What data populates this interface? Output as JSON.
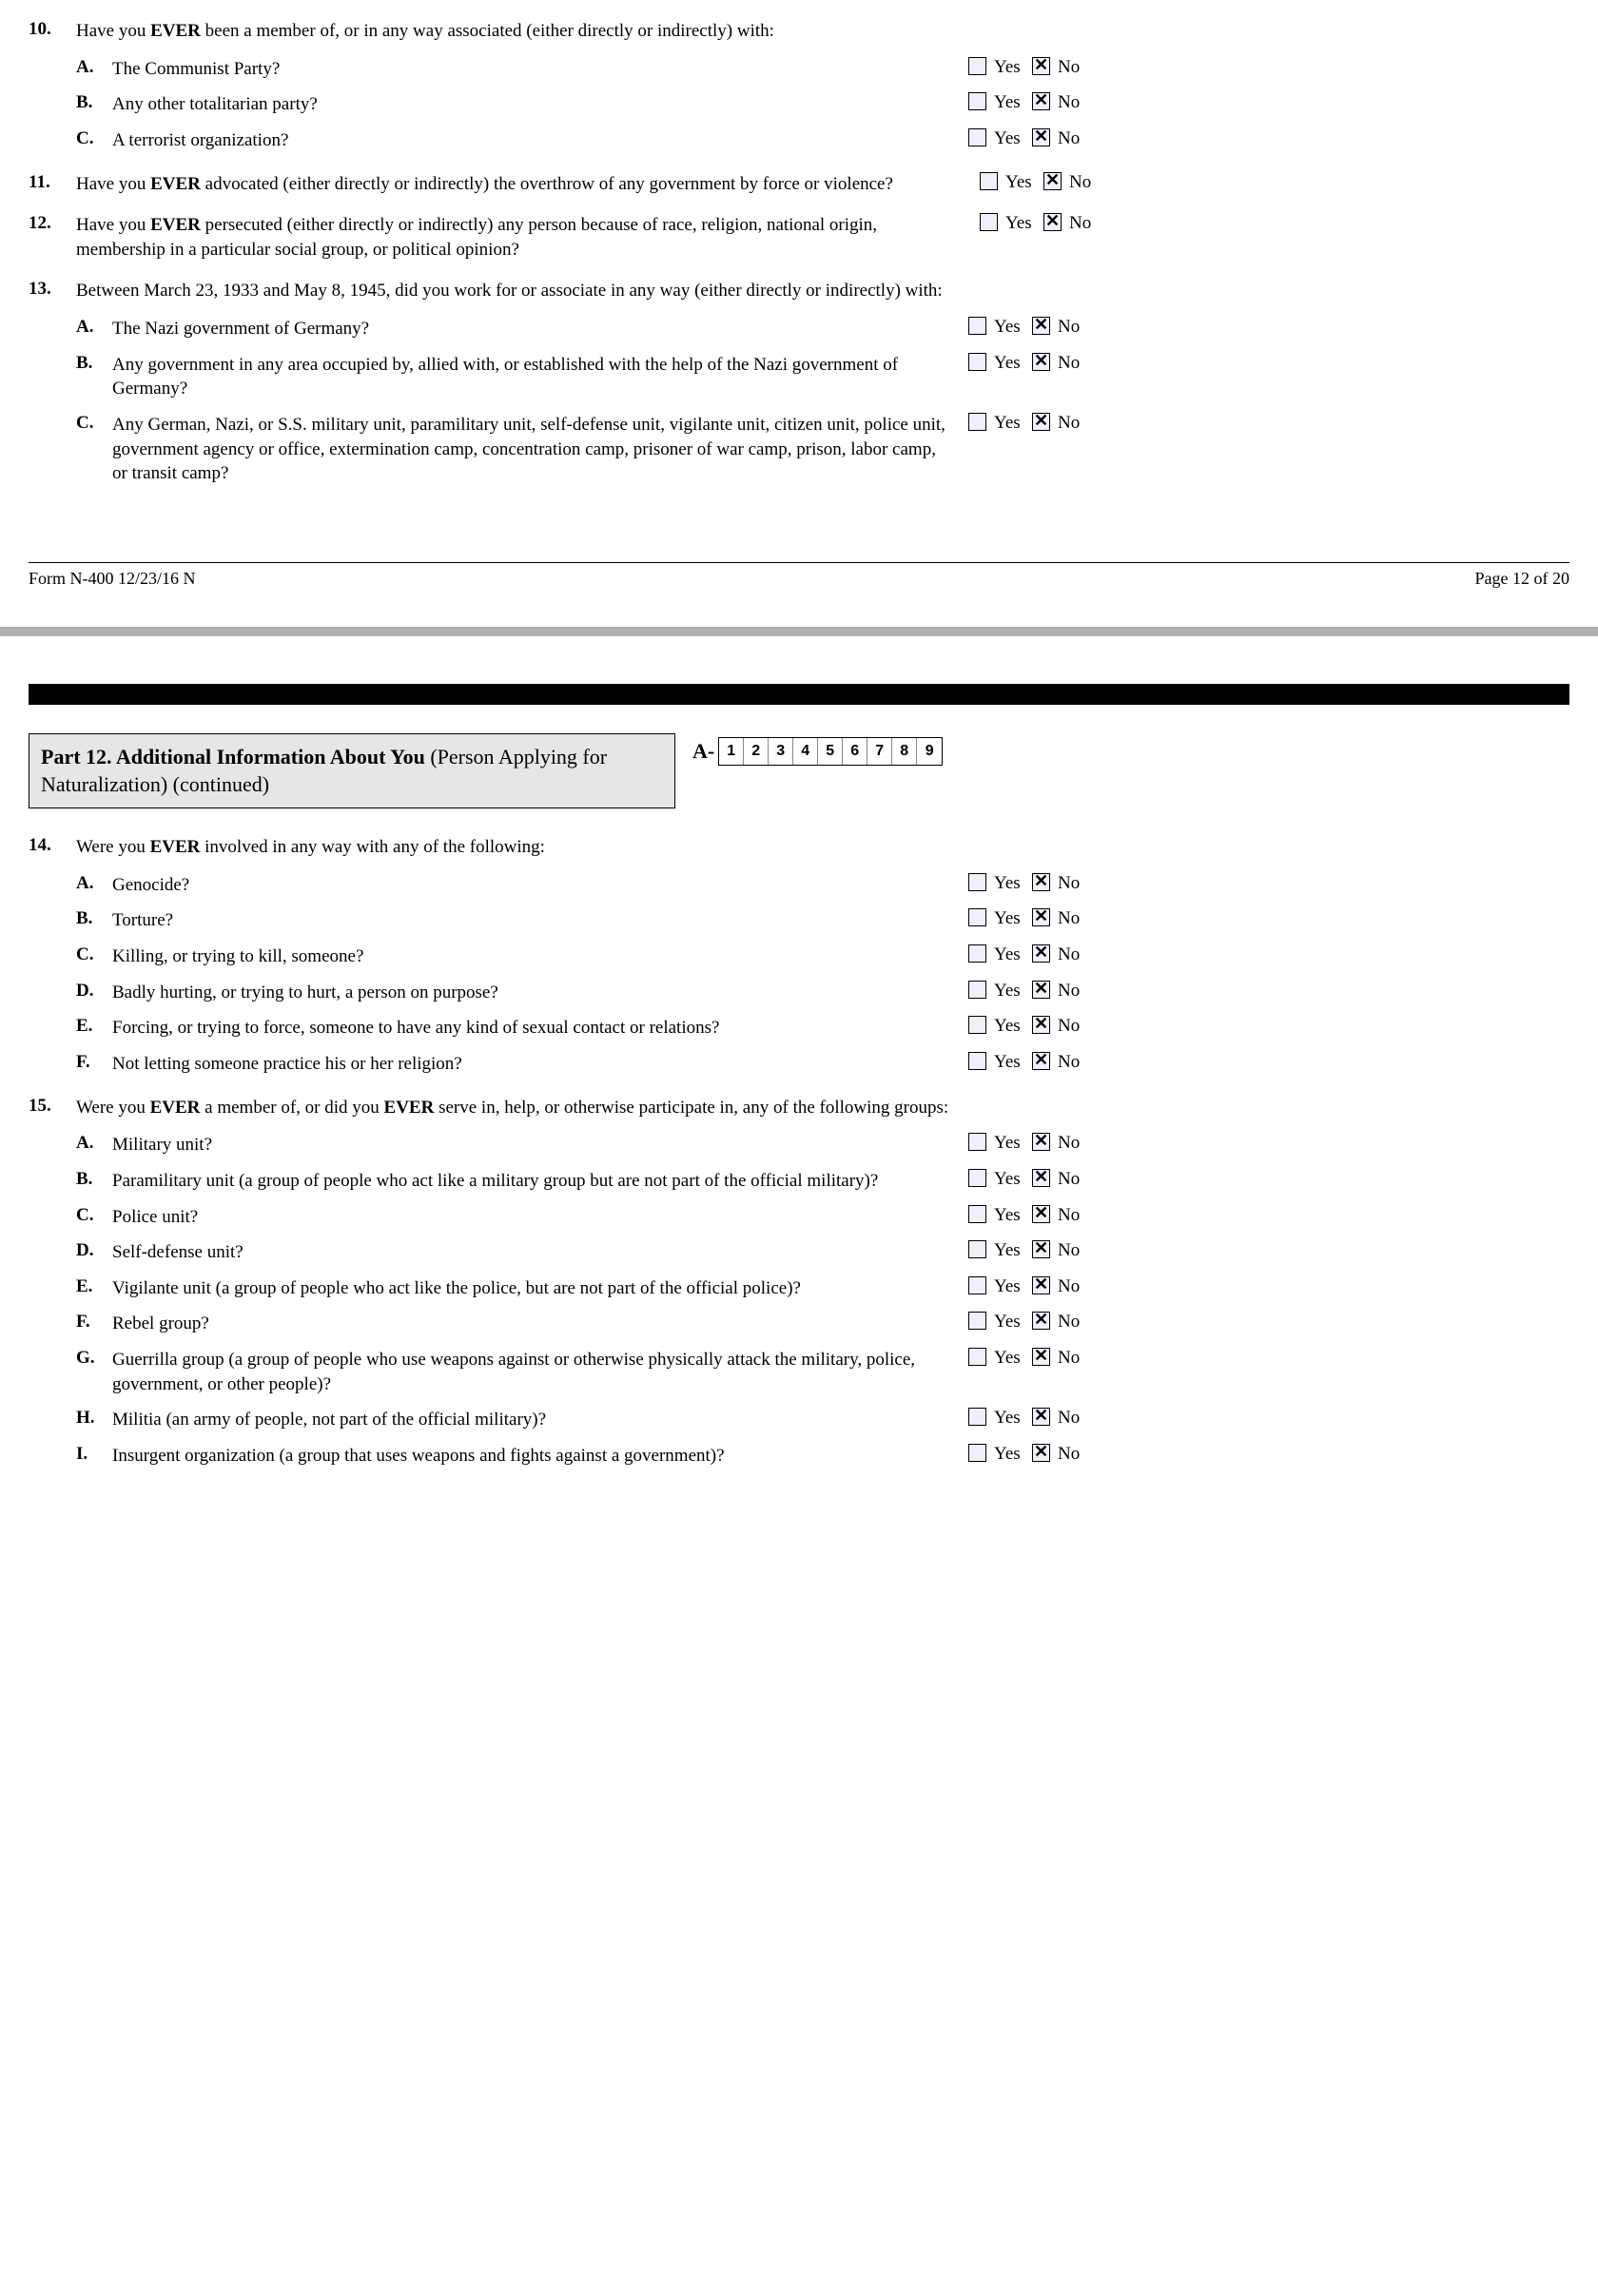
{
  "labels": {
    "yes": "Yes",
    "no": "No"
  },
  "footer": {
    "form": "Form N-400   12/23/16   N",
    "page": "Page 12 of 20"
  },
  "partHeader": {
    "bold": "Part 12.  Additional Information About You ",
    "rest": "(Person Applying for Naturalization) (continued)",
    "aPrefix": "A-",
    "aDigits": [
      "1",
      "2",
      "3",
      "4",
      "5",
      "6",
      "7",
      "8",
      "9"
    ]
  },
  "q10": {
    "num": "10.",
    "text_pre": "Have you ",
    "text_ever": "EVER",
    "text_post": " been a member of, or in any way associated (either directly or indirectly) with:",
    "subs": [
      {
        "letter": "A.",
        "text": "The Communist Party?",
        "yes": false,
        "no": true
      },
      {
        "letter": "B.",
        "text": "Any other totalitarian party?",
        "yes": false,
        "no": true
      },
      {
        "letter": "C.",
        "text": "A terrorist organization?",
        "yes": false,
        "no": true
      }
    ]
  },
  "q11": {
    "num": "11.",
    "text_pre": "Have you ",
    "text_ever": "EVER",
    "text_post": " advocated (either directly or indirectly) the overthrow of any government by force or violence?",
    "yes": false,
    "no": true
  },
  "q12": {
    "num": "12.",
    "text_pre": "Have you ",
    "text_ever": "EVER",
    "text_post": " persecuted (either directly or indirectly) any person because of race, religion, national origin, membership in a particular social group, or political opinion?",
    "yes": false,
    "no": true
  },
  "q13": {
    "num": "13.",
    "text": "Between March 23, 1933 and May 8, 1945, did you work for or associate in any way (either directly or indirectly) with:",
    "subs": [
      {
        "letter": "A.",
        "text": "The Nazi government of Germany?",
        "yes": false,
        "no": true
      },
      {
        "letter": "B.",
        "text": "Any government in any area occupied by, allied with, or established with the help of the Nazi government of Germany?",
        "yes": false,
        "no": true
      },
      {
        "letter": "C.",
        "text": "Any German, Nazi, or S.S. military unit, paramilitary unit, self-defense unit, vigilante unit, citizen unit, police unit, government agency or office, extermination camp, concentration camp, prisoner of war camp, prison, labor camp, or transit camp?",
        "yes": false,
        "no": true
      }
    ]
  },
  "q14": {
    "num": "14.",
    "text_pre": "Were you ",
    "text_ever": "EVER",
    "text_post": " involved in any way with any of the following:",
    "subs": [
      {
        "letter": "A.",
        "text": "Genocide?",
        "yes": false,
        "no": true
      },
      {
        "letter": "B.",
        "text": "Torture?",
        "yes": false,
        "no": true
      },
      {
        "letter": "C.",
        "text": "Killing, or trying to kill, someone?",
        "yes": false,
        "no": true
      },
      {
        "letter": "D.",
        "text": "Badly hurting, or trying to hurt, a person on purpose?",
        "yes": false,
        "no": true
      },
      {
        "letter": "E.",
        "text": "Forcing, or trying to force, someone to have any kind of sexual contact or relations?",
        "yes": false,
        "no": true
      },
      {
        "letter": "F.",
        "text": "Not letting someone practice his or her religion?",
        "yes": false,
        "no": true
      }
    ]
  },
  "q15": {
    "num": "15.",
    "text_pre": "Were you ",
    "text_ever1": "EVER",
    "text_mid": " a member of, or did you ",
    "text_ever2": "EVER",
    "text_post": " serve in, help, or otherwise participate in, any of the following groups:",
    "subs": [
      {
        "letter": "A.",
        "text": "Military unit?",
        "yes": false,
        "no": true
      },
      {
        "letter": "B.",
        "text": "Paramilitary unit (a group of people who act like a military group but are not part of the official military)?",
        "yes": false,
        "no": true
      },
      {
        "letter": "C.",
        "text": "Police unit?",
        "yes": false,
        "no": true
      },
      {
        "letter": "D.",
        "text": "Self-defense unit?",
        "yes": false,
        "no": true
      },
      {
        "letter": "E.",
        "text": "Vigilante unit (a group of people who act like the police, but are not part of the official police)?",
        "yes": false,
        "no": true
      },
      {
        "letter": "F.",
        "text": "Rebel group?",
        "yes": false,
        "no": true
      },
      {
        "letter": "G.",
        "text": "Guerrilla group (a group of people who use weapons against or otherwise physically attack the military, police, government, or other people)?",
        "yes": false,
        "no": true
      },
      {
        "letter": "H.",
        "text": "Militia (an army of people, not part of the official military)?",
        "yes": false,
        "no": true
      },
      {
        "letter": "I.",
        "text": "Insurgent organization (a group that uses weapons and fights against a government)?",
        "yes": false,
        "no": true
      }
    ]
  }
}
